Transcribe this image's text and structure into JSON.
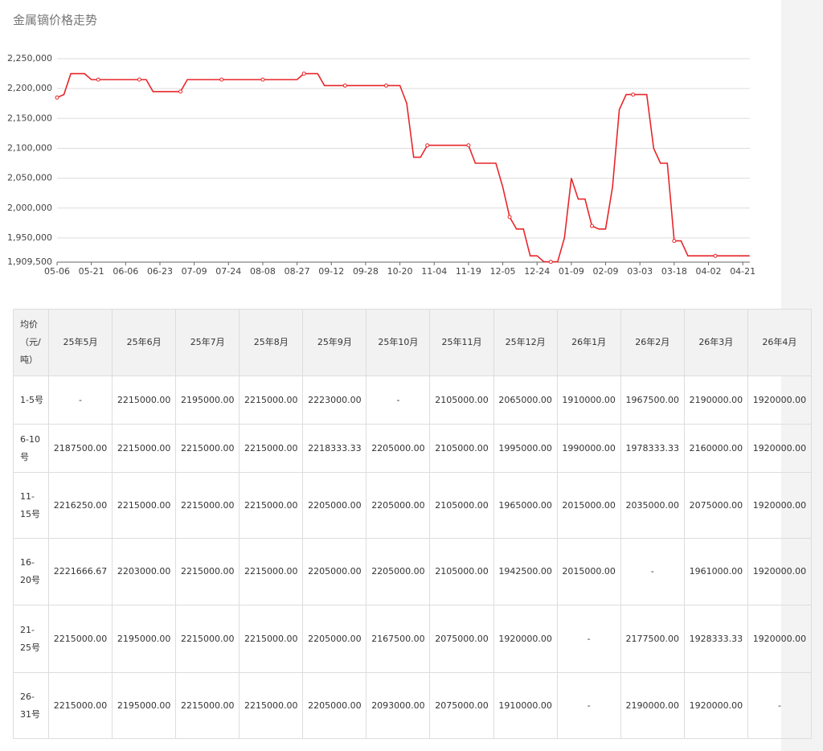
{
  "chart_data": {
    "type": "line",
    "title": "金属镝价格走势",
    "categories": [
      "05-06",
      null,
      null,
      null,
      null,
      "05-21",
      null,
      null,
      null,
      null,
      "06-06",
      null,
      null,
      null,
      null,
      "06-23",
      null,
      null,
      null,
      null,
      "07-09",
      null,
      null,
      null,
      null,
      "07-24",
      null,
      null,
      null,
      null,
      "08-08",
      null,
      null,
      null,
      null,
      "08-27",
      null,
      null,
      null,
      null,
      "09-12",
      null,
      null,
      null,
      null,
      "09-28",
      null,
      null,
      null,
      null,
      "10-20",
      null,
      null,
      null,
      null,
      "11-04",
      null,
      null,
      null,
      null,
      "11-19",
      null,
      null,
      null,
      null,
      "12-05",
      null,
      null,
      null,
      null,
      "12-24",
      null,
      null,
      null,
      null,
      "01-09",
      null,
      null,
      null,
      null,
      "02-09",
      null,
      null,
      null,
      null,
      "03-03",
      null,
      null,
      null,
      null,
      "03-18",
      null,
      null,
      null,
      null,
      "04-02",
      null,
      null,
      null,
      null,
      "04-21",
      null
    ],
    "series": [
      {
        "color": "#e8262a",
        "values": [
          2185000,
          2190000,
          2225000,
          2225000,
          2225000,
          2215000,
          2215000,
          2215000,
          2215000,
          2215000,
          2215000,
          2215000,
          2215000,
          2215000,
          2195000,
          2195000,
          2195000,
          2195000,
          2195000,
          2215000,
          2215000,
          2215000,
          2215000,
          2215000,
          2215000,
          2215000,
          2215000,
          2215000,
          2215000,
          2215000,
          2215000,
          2215000,
          2215000,
          2215000,
          2215000,
          2215000,
          2225000,
          2225000,
          2225000,
          2205000,
          2205000,
          2205000,
          2205000,
          2205000,
          2205000,
          2205000,
          2205000,
          2205000,
          2205000,
          2205000,
          2205000,
          2175000,
          2085000,
          2085000,
          2105000,
          2105000,
          2105000,
          2105000,
          2105000,
          2105000,
          2105000,
          2075000,
          2075000,
          2075000,
          2075000,
          2035000,
          1985000,
          1965000,
          1965000,
          1920000,
          1920000,
          1910000,
          1910000,
          1910000,
          1950000,
          2050000,
          2015000,
          2015000,
          1970000,
          1965000,
          1965000,
          2035000,
          2165000,
          2190000,
          2190000,
          2190000,
          2190000,
          2100000,
          2075000,
          2075000,
          1945000,
          1945000,
          1920000,
          1920000,
          1920000,
          1920000,
          1920000,
          1920000,
          1920000,
          1920000,
          1920000,
          1920000
        ]
      }
    ],
    "ylim": [
      1909500,
      2250000
    ],
    "yticks": [
      {
        "value": 1909500,
        "label": "1,909,500"
      },
      {
        "value": 1950000,
        "label": "1,950,000"
      },
      {
        "value": 2000000,
        "label": "2,000,000"
      },
      {
        "value": 2050000,
        "label": "2,050,000"
      },
      {
        "value": 2100000,
        "label": "2,100,000"
      },
      {
        "value": 2150000,
        "label": "2,150,000"
      },
      {
        "value": 2200000,
        "label": "2,200,000"
      },
      {
        "value": 2250000,
        "label": "2,250,000"
      }
    ],
    "grid": true
  },
  "table": {
    "header": [
      "均价（元/吨）",
      "25年5月",
      "25年6月",
      "25年7月",
      "25年8月",
      "25年9月",
      "25年10月",
      "25年11月",
      "25年12月",
      "26年1月",
      "26年2月",
      "26年3月",
      "26年4月"
    ],
    "rows": [
      [
        "1-5号",
        "-",
        "2215000.00",
        "2195000.00",
        "2215000.00",
        "2223000.00",
        "-",
        "2105000.00",
        "2065000.00",
        "1910000.00",
        "1967500.00",
        "2190000.00",
        "1920000.00"
      ],
      [
        "6-10号",
        "2187500.00",
        "2215000.00",
        "2215000.00",
        "2215000.00",
        "2218333.33",
        "2205000.00",
        "2105000.00",
        "1995000.00",
        "1990000.00",
        "1978333.33",
        "2160000.00",
        "1920000.00"
      ],
      [
        "11-15号",
        "2216250.00",
        "2215000.00",
        "2215000.00",
        "2215000.00",
        "2205000.00",
        "2205000.00",
        "2105000.00",
        "1965000.00",
        "2015000.00",
        "2035000.00",
        "2075000.00",
        "1920000.00"
      ],
      [
        "16-20号",
        "2221666.67",
        "2203000.00",
        "2215000.00",
        "2215000.00",
        "2205000.00",
        "2205000.00",
        "2105000.00",
        "1942500.00",
        "2015000.00",
        "-",
        "1961000.00",
        "1920000.00"
      ],
      [
        "21-25号",
        "2215000.00",
        "2195000.00",
        "2215000.00",
        "2215000.00",
        "2205000.00",
        "2167500.00",
        "2075000.00",
        "1920000.00",
        "-",
        "2177500.00",
        "1928333.33",
        "1920000.00"
      ],
      [
        "26-31号",
        "2215000.00",
        "2195000.00",
        "2215000.00",
        "2215000.00",
        "2205000.00",
        "2093000.00",
        "2075000.00",
        "1910000.00",
        "-",
        "2190000.00",
        "1920000.00",
        "-"
      ]
    ]
  }
}
